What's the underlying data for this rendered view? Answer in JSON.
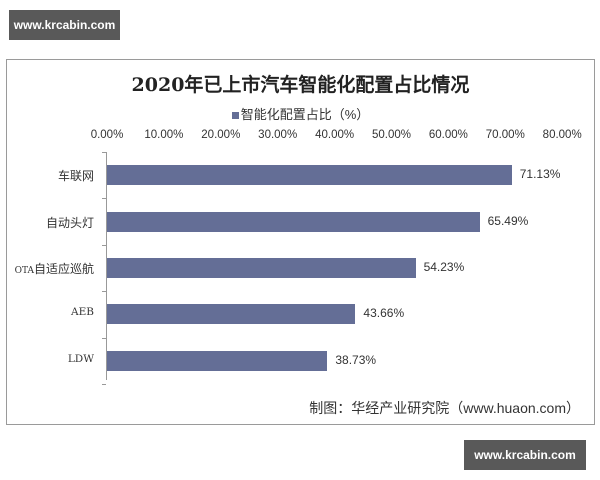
{
  "watermarks": {
    "top": "www.krcabin.com",
    "bottom": "www.krcabin.com"
  },
  "chart": {
    "title": "2020年已上市汽车智能化配置占比情况",
    "legend": "智能化配置占比（%）",
    "source": "制图：华经产业研究院（www.huaon.com）",
    "bar_color": "#646e96"
  },
  "chart_data": {
    "type": "bar",
    "orientation": "horizontal",
    "title": "2020年已上市汽车智能化配置占比情况",
    "xlabel": "",
    "ylabel": "",
    "legend": [
      "智能化配置占比（%）"
    ],
    "legend_position": "top",
    "xlim": [
      0,
      80
    ],
    "x_axis_position": "top",
    "x_ticks": [
      "0.00%",
      "10.00%",
      "20.00%",
      "30.00%",
      "40.00%",
      "50.00%",
      "60.00%",
      "70.00%",
      "80.00%"
    ],
    "grid": false,
    "categories": [
      "车联网",
      "自动头灯",
      "OTA自适应巡航",
      "AEB",
      "LDW"
    ],
    "values": [
      71.13,
      65.49,
      54.23,
      43.66,
      38.73
    ],
    "value_labels": [
      "71.13%",
      "65.49%",
      "54.23%",
      "43.66%",
      "38.73%"
    ],
    "annotations": [
      "制图：华经产业研究院（www.huaon.com）"
    ]
  }
}
